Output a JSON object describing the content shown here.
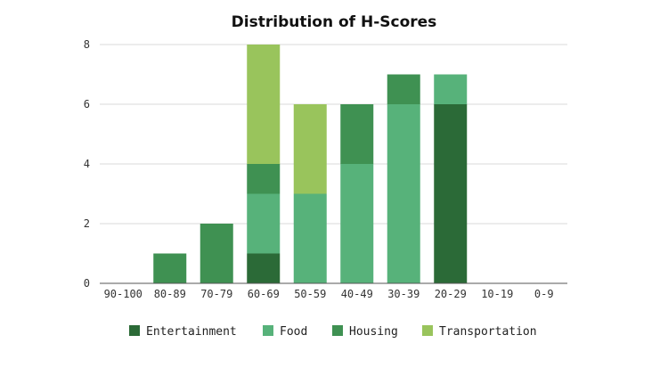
{
  "chart_data": {
    "type": "bar",
    "stacked": true,
    "title": "Distribution of H-Scores",
    "xlabel": "",
    "ylabel": "",
    "categories": [
      "90-100",
      "80-89",
      "70-79",
      "60-69",
      "50-59",
      "40-49",
      "30-39",
      "20-29",
      "10-19",
      "0-9"
    ],
    "series": [
      {
        "name": "Entertainment",
        "color": "#2b6a37",
        "values": [
          0,
          0,
          0,
          1,
          0,
          0,
          0,
          6,
          0,
          0
        ]
      },
      {
        "name": "Food",
        "color": "#57b27a",
        "values": [
          0,
          0,
          0,
          2,
          3,
          4,
          6,
          1,
          0,
          0
        ]
      },
      {
        "name": "Housing",
        "color": "#3f9152",
        "values": [
          0,
          1,
          2,
          1,
          0,
          2,
          1,
          0,
          0,
          0
        ]
      },
      {
        "name": "Transportation",
        "color": "#99c45c",
        "values": [
          0,
          0,
          0,
          4,
          3,
          0,
          0,
          0,
          0,
          0
        ]
      }
    ],
    "ylim": [
      0,
      8
    ],
    "yticks": [
      0,
      2,
      4,
      6,
      8
    ],
    "grid": true,
    "legend_position": "bottom"
  }
}
